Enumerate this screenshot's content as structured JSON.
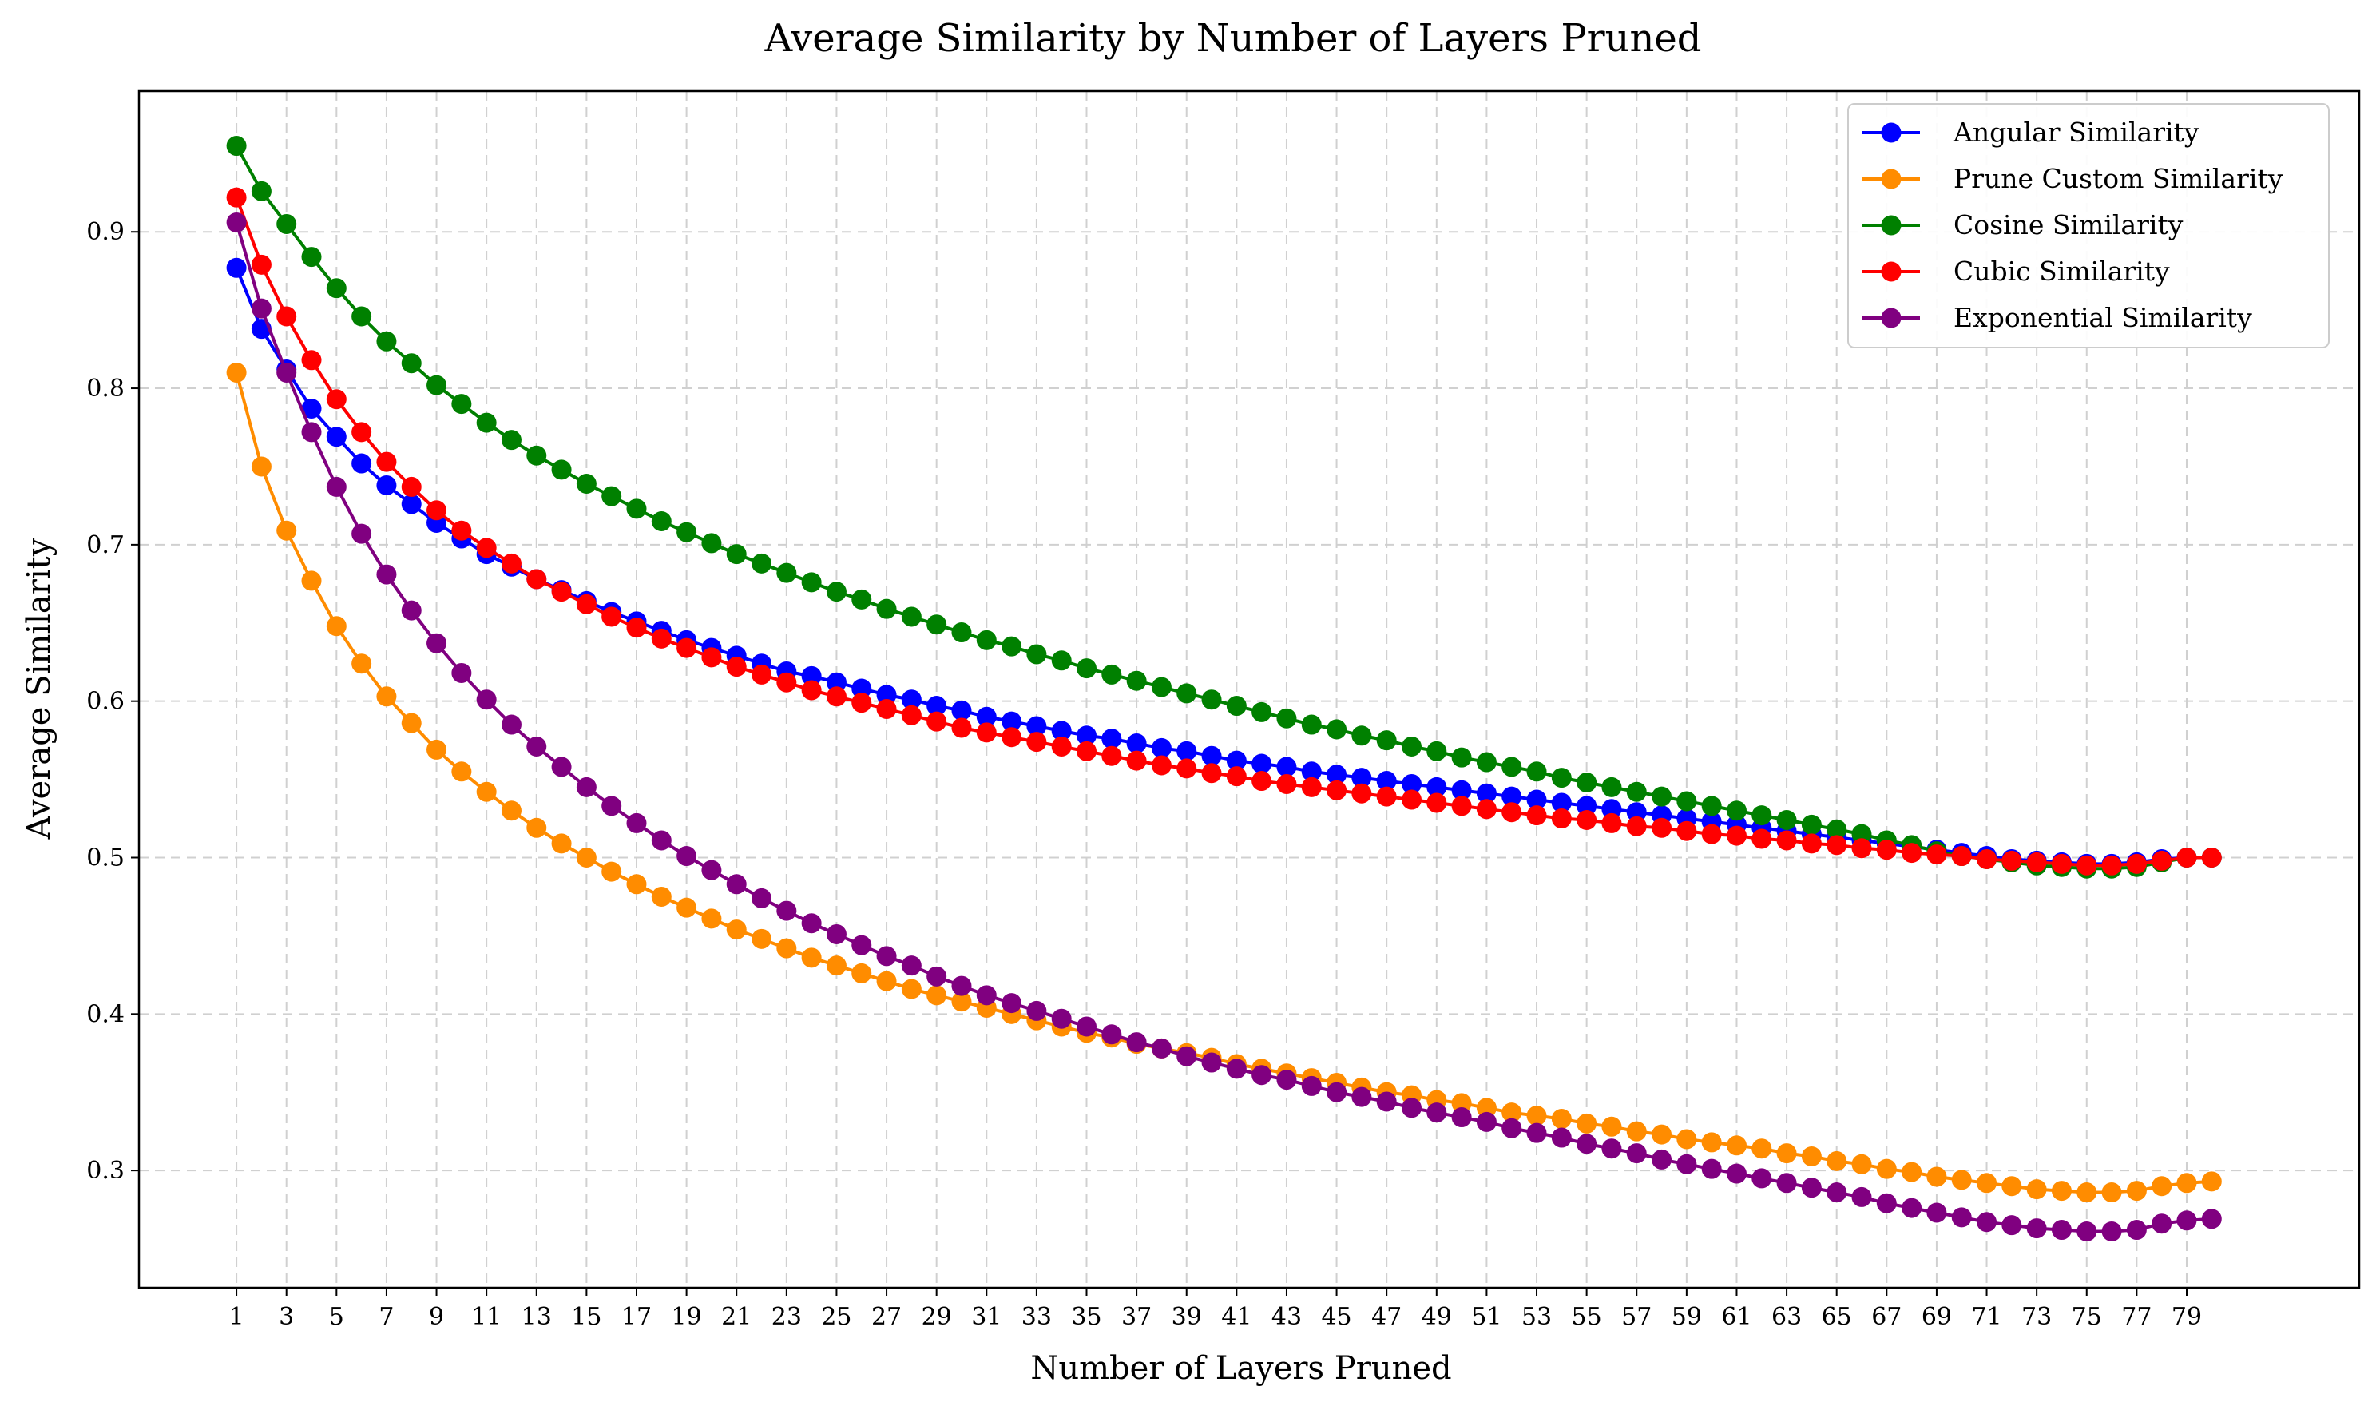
{
  "chart_data": {
    "type": "line",
    "title": "Average Similarity by Number of Layers Pruned",
    "xlabel": "Number of Layers Pruned",
    "ylabel": "Average Similarity",
    "xlim": [
      -2.9,
      85.9
    ],
    "ylim": [
      0.225,
      0.99
    ],
    "x_ticks": [
      1,
      3,
      5,
      7,
      9,
      11,
      13,
      15,
      17,
      19,
      21,
      23,
      25,
      27,
      29,
      31,
      33,
      35,
      37,
      39,
      41,
      43,
      45,
      47,
      49,
      51,
      53,
      55,
      57,
      59,
      61,
      63,
      65,
      67,
      69,
      71,
      73,
      75,
      77,
      79
    ],
    "y_ticks": [
      0.3,
      0.4,
      0.5,
      0.6,
      0.7,
      0.8,
      0.9
    ],
    "y_tick_labels": [
      "0.3",
      "0.4",
      "0.5",
      "0.6",
      "0.7",
      "0.8",
      "0.9"
    ],
    "grid": true,
    "legend_position": "top-right",
    "x": [
      1,
      2,
      3,
      4,
      5,
      6,
      7,
      8,
      9,
      10,
      11,
      12,
      13,
      14,
      15,
      16,
      17,
      18,
      19,
      20,
      21,
      22,
      23,
      24,
      25,
      26,
      27,
      28,
      29,
      30,
      31,
      32,
      33,
      34,
      35,
      36,
      37,
      38,
      39,
      40,
      41,
      42,
      43,
      44,
      45,
      46,
      47,
      48,
      49,
      50,
      51,
      52,
      53,
      54,
      55,
      56,
      57,
      58,
      59,
      60,
      61,
      62,
      63,
      64,
      65,
      66,
      67,
      68,
      69,
      70,
      71,
      72,
      73,
      74,
      75,
      76,
      77,
      78,
      79,
      80
    ],
    "series": [
      {
        "name": "Angular Similarity",
        "color": "#0000ff",
        "values": [
          0.877,
          0.838,
          0.812,
          0.787,
          0.769,
          0.752,
          0.738,
          0.726,
          0.714,
          0.704,
          0.694,
          0.686,
          0.678,
          0.671,
          0.664,
          0.657,
          0.651,
          0.645,
          0.639,
          0.634,
          0.629,
          0.624,
          0.619,
          0.616,
          0.612,
          0.608,
          0.604,
          0.601,
          0.597,
          0.594,
          0.59,
          0.587,
          0.584,
          0.581,
          0.578,
          0.576,
          0.573,
          0.57,
          0.568,
          0.565,
          0.562,
          0.56,
          0.558,
          0.555,
          0.553,
          0.551,
          0.549,
          0.547,
          0.545,
          0.543,
          0.541,
          0.539,
          0.537,
          0.535,
          0.533,
          0.531,
          0.529,
          0.527,
          0.525,
          0.523,
          0.521,
          0.519,
          0.517,
          0.515,
          0.513,
          0.511,
          0.509,
          0.507,
          0.505,
          0.503,
          0.501,
          0.499,
          0.498,
          0.497,
          0.496,
          0.496,
          0.497,
          0.499,
          0.5,
          0.5
        ]
      },
      {
        "name": "Prune Custom Similarity",
        "color": "#ff8c00",
        "values": [
          0.81,
          0.75,
          0.709,
          0.677,
          0.648,
          0.624,
          0.603,
          0.586,
          0.569,
          0.555,
          0.542,
          0.53,
          0.519,
          0.509,
          0.5,
          0.491,
          0.483,
          0.475,
          0.468,
          0.461,
          0.454,
          0.448,
          0.442,
          0.436,
          0.431,
          0.426,
          0.421,
          0.416,
          0.412,
          0.408,
          0.404,
          0.4,
          0.396,
          0.392,
          0.388,
          0.385,
          0.381,
          0.378,
          0.375,
          0.372,
          0.368,
          0.365,
          0.362,
          0.359,
          0.356,
          0.353,
          0.35,
          0.348,
          0.345,
          0.343,
          0.34,
          0.337,
          0.335,
          0.333,
          0.33,
          0.328,
          0.325,
          0.323,
          0.32,
          0.318,
          0.316,
          0.314,
          0.311,
          0.309,
          0.306,
          0.304,
          0.301,
          0.299,
          0.296,
          0.294,
          0.292,
          0.29,
          0.288,
          0.287,
          0.286,
          0.286,
          0.287,
          0.29,
          0.292,
          0.293
        ]
      },
      {
        "name": "Cosine Similarity",
        "color": "#008000",
        "values": [
          0.955,
          0.926,
          0.905,
          0.884,
          0.864,
          0.846,
          0.83,
          0.816,
          0.802,
          0.79,
          0.778,
          0.767,
          0.757,
          0.748,
          0.739,
          0.731,
          0.723,
          0.715,
          0.708,
          0.701,
          0.694,
          0.688,
          0.682,
          0.676,
          0.67,
          0.665,
          0.659,
          0.654,
          0.649,
          0.644,
          0.639,
          0.635,
          0.63,
          0.626,
          0.621,
          0.617,
          0.613,
          0.609,
          0.605,
          0.601,
          0.597,
          0.593,
          0.589,
          0.585,
          0.582,
          0.578,
          0.575,
          0.571,
          0.568,
          0.564,
          0.561,
          0.558,
          0.555,
          0.551,
          0.548,
          0.545,
          0.542,
          0.539,
          0.536,
          0.533,
          0.53,
          0.527,
          0.524,
          0.521,
          0.518,
          0.515,
          0.511,
          0.508,
          0.504,
          0.501,
          0.499,
          0.497,
          0.495,
          0.494,
          0.493,
          0.493,
          0.494,
          0.497,
          0.5,
          0.5
        ]
      },
      {
        "name": "Cubic Similarity",
        "color": "#ff0000",
        "values": [
          0.922,
          0.879,
          0.846,
          0.818,
          0.793,
          0.772,
          0.753,
          0.737,
          0.722,
          0.709,
          0.698,
          0.688,
          0.678,
          0.67,
          0.662,
          0.654,
          0.647,
          0.64,
          0.634,
          0.628,
          0.622,
          0.617,
          0.612,
          0.607,
          0.603,
          0.599,
          0.595,
          0.591,
          0.587,
          0.583,
          0.58,
          0.577,
          0.574,
          0.571,
          0.568,
          0.565,
          0.562,
          0.559,
          0.557,
          0.554,
          0.552,
          0.549,
          0.547,
          0.545,
          0.543,
          0.541,
          0.539,
          0.537,
          0.535,
          0.533,
          0.531,
          0.529,
          0.527,
          0.525,
          0.524,
          0.522,
          0.52,
          0.519,
          0.517,
          0.515,
          0.514,
          0.512,
          0.511,
          0.509,
          0.508,
          0.506,
          0.505,
          0.503,
          0.502,
          0.501,
          0.499,
          0.498,
          0.497,
          0.496,
          0.495,
          0.495,
          0.496,
          0.498,
          0.5,
          0.5
        ]
      },
      {
        "name": "Exponential Similarity",
        "color": "#800080",
        "values": [
          0.906,
          0.851,
          0.81,
          0.772,
          0.737,
          0.707,
          0.681,
          0.658,
          0.637,
          0.618,
          0.601,
          0.585,
          0.571,
          0.558,
          0.545,
          0.533,
          0.522,
          0.511,
          0.501,
          0.492,
          0.483,
          0.474,
          0.466,
          0.458,
          0.451,
          0.444,
          0.437,
          0.431,
          0.424,
          0.418,
          0.412,
          0.407,
          0.402,
          0.397,
          0.392,
          0.387,
          0.382,
          0.378,
          0.373,
          0.369,
          0.365,
          0.361,
          0.358,
          0.354,
          0.35,
          0.347,
          0.344,
          0.34,
          0.337,
          0.334,
          0.331,
          0.327,
          0.324,
          0.321,
          0.317,
          0.314,
          0.311,
          0.307,
          0.304,
          0.301,
          0.298,
          0.295,
          0.292,
          0.289,
          0.286,
          0.283,
          0.279,
          0.276,
          0.273,
          0.27,
          0.267,
          0.265,
          0.263,
          0.262,
          0.261,
          0.261,
          0.262,
          0.266,
          0.268,
          0.269
        ]
      }
    ]
  }
}
